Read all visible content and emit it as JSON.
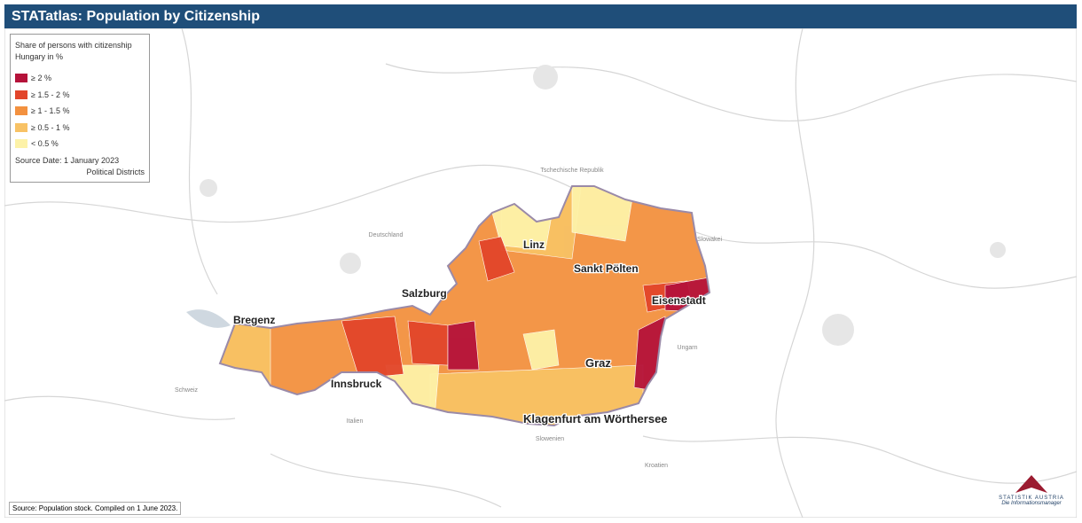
{
  "header": {
    "title": "STATatlas: Population by Citizenship"
  },
  "legend": {
    "title": "Share of persons with citizenship Hungary in %",
    "items": [
      {
        "label": "≥ 2 %",
        "color": "#b5123a"
      },
      {
        "label": "≥ 1.5 - 2 %",
        "color": "#e2452b"
      },
      {
        "label": "≥ 1 - 1.5 %",
        "color": "#f3913f"
      },
      {
        "label": "≥ 0.5 - 1 %",
        "color": "#f8c265"
      },
      {
        "label": "< 0.5 %",
        "color": "#fdf2a8"
      }
    ],
    "source_date": "Source Date: 1 January 2023",
    "unit": "Political Districts"
  },
  "map": {
    "countries": [
      "Deutschland",
      "Tschechische Republik",
      "Slowakei",
      "Ungarn",
      "Schweiz",
      "Italien",
      "Slowenien",
      "Kroatien"
    ],
    "cities": [
      "Bregenz",
      "Innsbruck",
      "Salzburg",
      "Linz",
      "Sankt Pölten",
      "Eisenstadt",
      "Graz",
      "Klagenfurt am Wörthersee"
    ]
  },
  "footer": {
    "source": "Source: Population stock. Compiled on 1 June 2023.",
    "logo": "STATISTIK AUSTRIA",
    "tagline": "Die Informationsmanager"
  }
}
